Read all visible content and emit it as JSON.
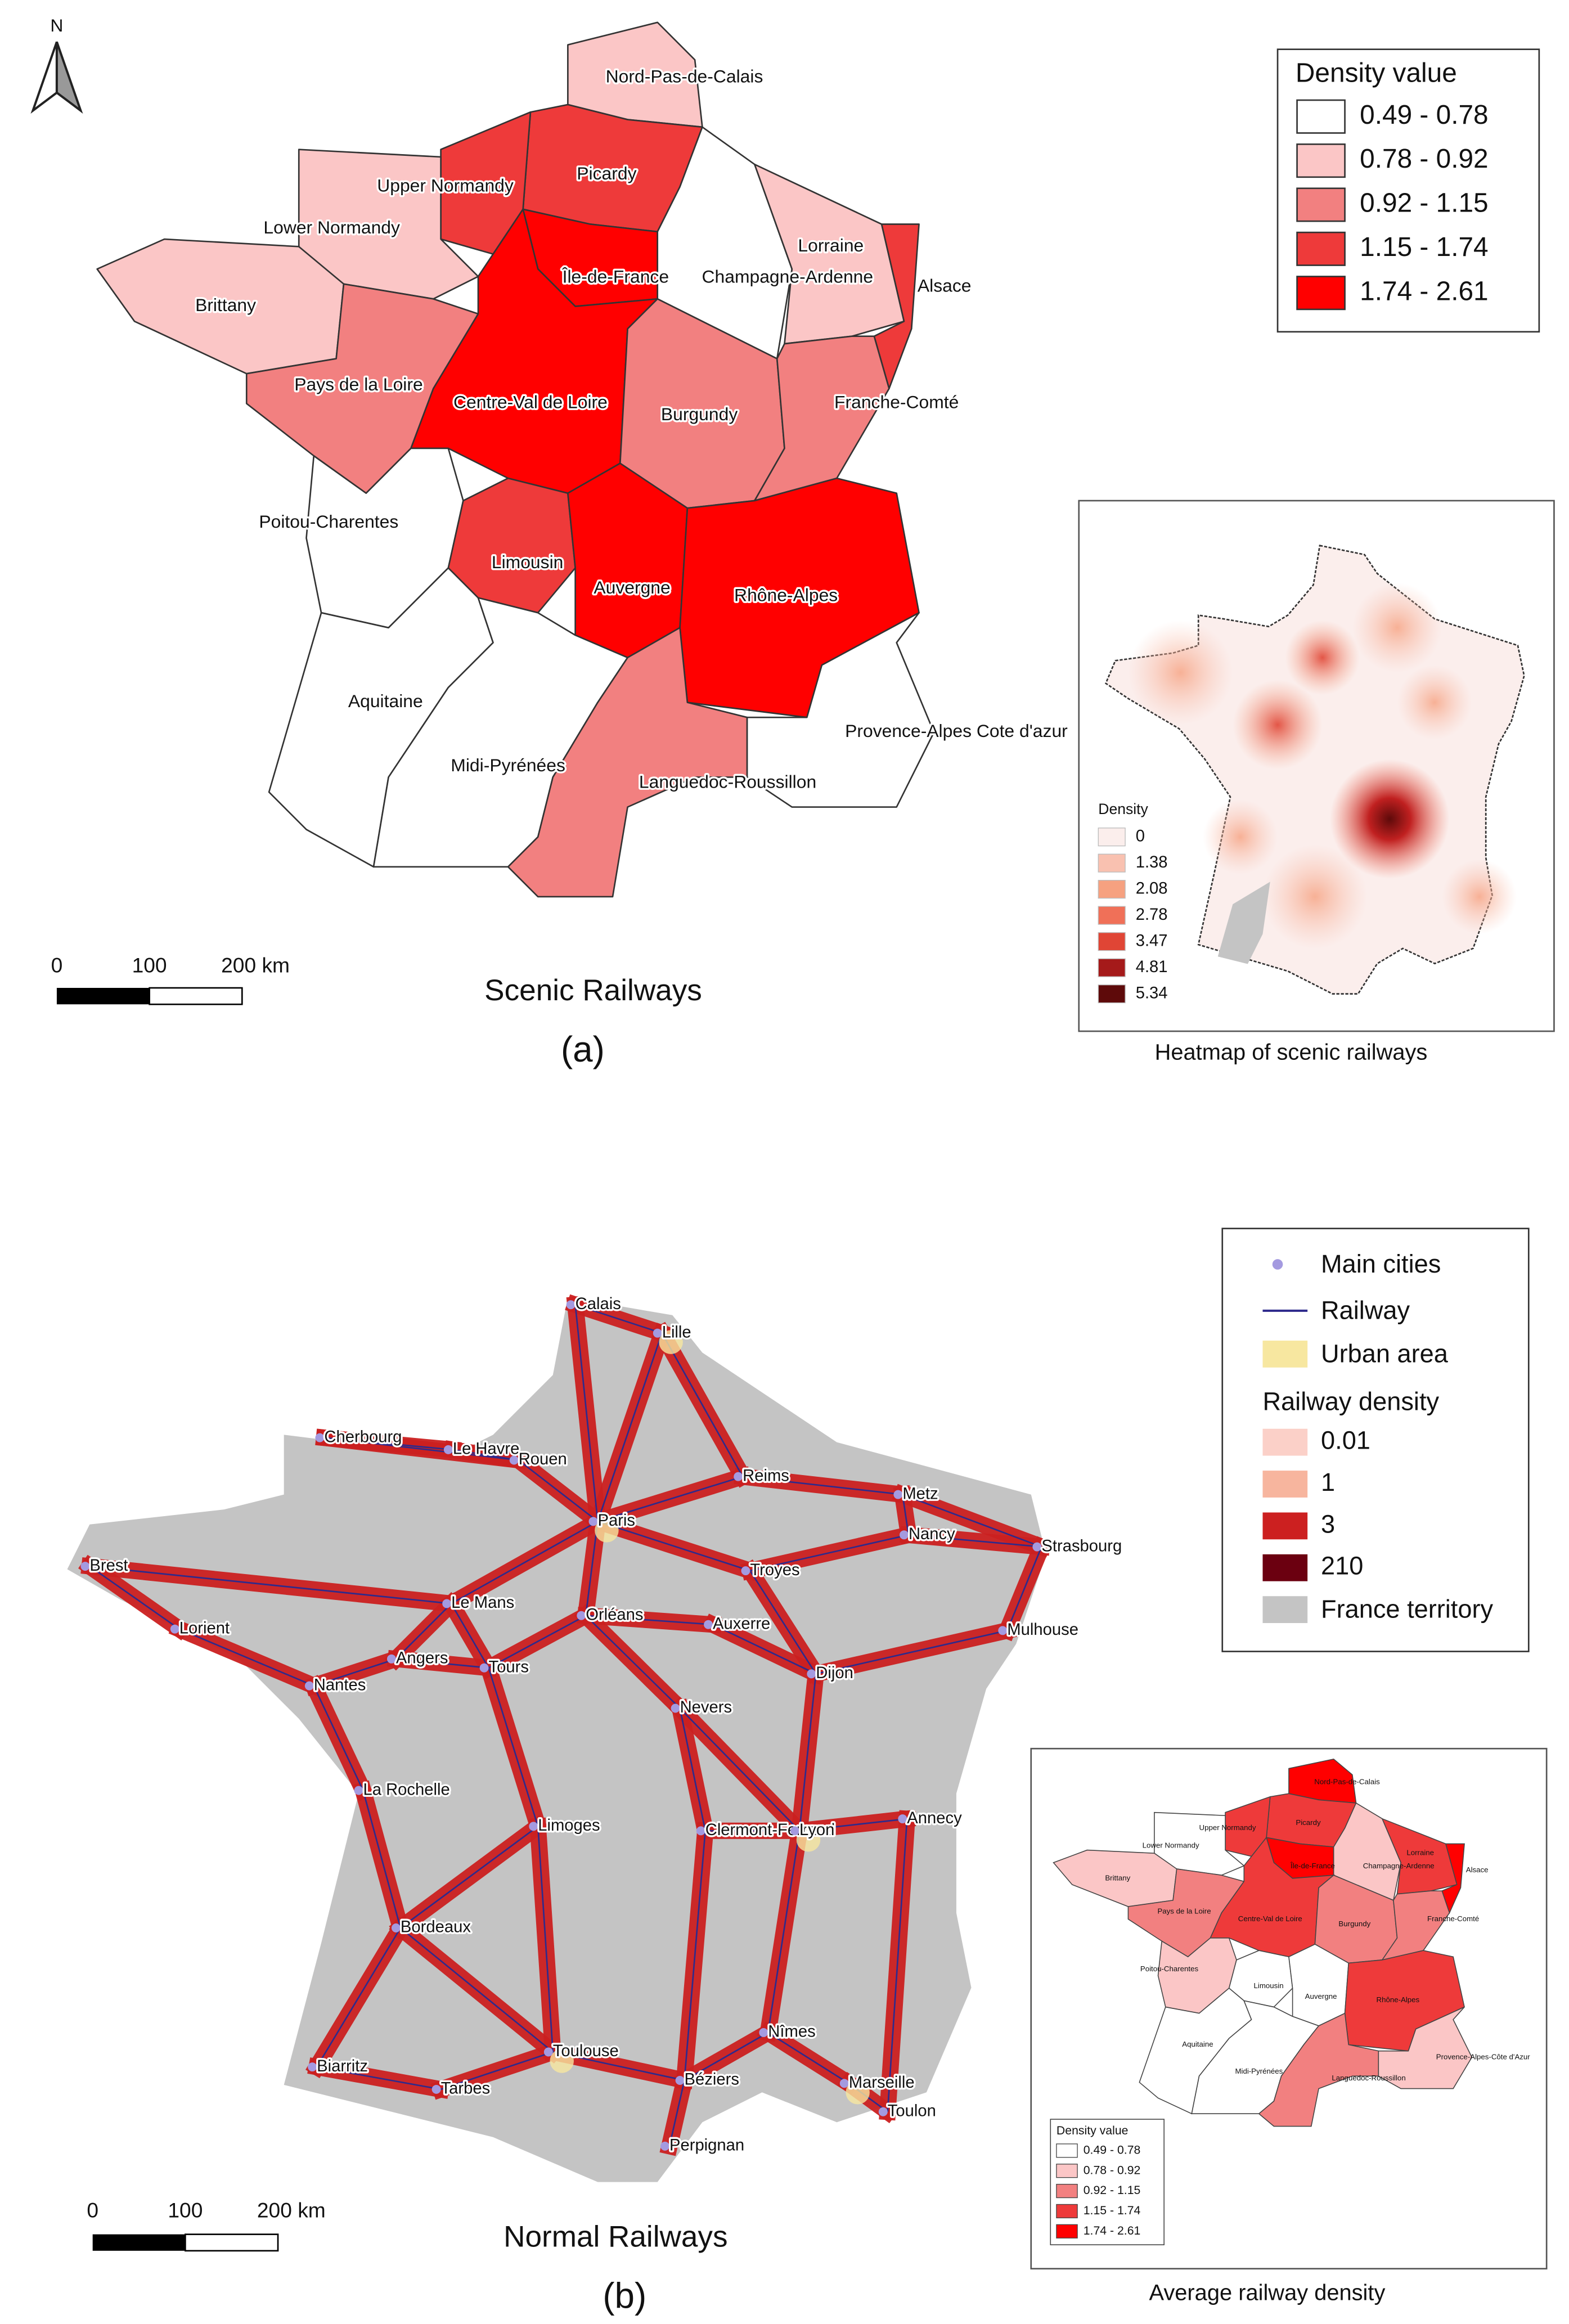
{
  "panel_a": {
    "north_label": "N",
    "title": "Scenic Railways",
    "caption": "(a)",
    "scale_bar": [
      "0",
      "100",
      "200 km"
    ],
    "regions": [
      {
        "name": "Nord-Pas-de-Calais",
        "color": "#fbc6c6"
      },
      {
        "name": "Picardy",
        "color": "#ee3a3a"
      },
      {
        "name": "Upper Normandy",
        "color": "#ee3a3a"
      },
      {
        "name": "Lower Normandy",
        "color": "#fbc6c6"
      },
      {
        "name": "Brittany",
        "color": "#fbc6c6"
      },
      {
        "name": "Île-de-France",
        "color": "#ff0000"
      },
      {
        "name": "Champagne-Ardenne",
        "color": "#ffffff"
      },
      {
        "name": "Lorraine",
        "color": "#fbc6c6"
      },
      {
        "name": "Alsace",
        "color": "#ee3a3a"
      },
      {
        "name": "Pays de la Loire",
        "color": "#f28080"
      },
      {
        "name": "Centre-Val de Loire",
        "color": "#ff0000"
      },
      {
        "name": "Burgundy",
        "color": "#f28080"
      },
      {
        "name": "Franche-Comté",
        "color": "#f28080"
      },
      {
        "name": "Poitou-Charentes",
        "color": "#ffffff"
      },
      {
        "name": "Limousin",
        "color": "#ee3a3a"
      },
      {
        "name": "Auvergne",
        "color": "#ff0000"
      },
      {
        "name": "Rhône-Alpes",
        "color": "#ff0000"
      },
      {
        "name": "Aquitaine",
        "color": "#ffffff"
      },
      {
        "name": "Midi-Pyrénées",
        "color": "#ffffff"
      },
      {
        "name": "Languedoc-Roussillon",
        "color": "#f28080"
      },
      {
        "name": "Provence-Alpes Cote d'azur",
        "color": "#ffffff"
      }
    ],
    "legend": {
      "title": "Density value",
      "items": [
        {
          "label": "0.49 - 0.78",
          "color": "#ffffff"
        },
        {
          "label": "0.78 - 0.92",
          "color": "#fbc6c6"
        },
        {
          "label": "0.92 - 1.15",
          "color": "#f28080"
        },
        {
          "label": "1.15 - 1.74",
          "color": "#ee3a3a"
        },
        {
          "label": "1.74 - 2.61",
          "color": "#ff0000"
        }
      ]
    },
    "heatmap": {
      "caption": "Heatmap of scenic railways",
      "legend_title": "Density",
      "items": [
        {
          "label": "0",
          "color": "#fbeeec"
        },
        {
          "label": "1.38",
          "color": "#f9c1b0"
        },
        {
          "label": "2.08",
          "color": "#f6a180"
        },
        {
          "label": "2.78",
          "color": "#f07058"
        },
        {
          "label": "3.47",
          "color": "#e04535"
        },
        {
          "label": "4.81",
          "color": "#a51a1a"
        },
        {
          "label": "5.34",
          "color": "#5e0a0a"
        }
      ]
    }
  },
  "panel_b": {
    "title": "Normal Railways",
    "caption": "(b)",
    "scale_bar": [
      "0",
      "100",
      "200 km"
    ],
    "cities": [
      "Calais",
      "Lille",
      "Cherbourg",
      "Le Havre",
      "Rouen",
      "Reims",
      "Metz",
      "Paris",
      "Nancy",
      "Strasbourg",
      "Brest",
      "Troyes",
      "Lorient",
      "Le Mans",
      "Orléans",
      "Auxerre",
      "Mulhouse",
      "Angers",
      "Tours",
      "Nantes",
      "Dijon",
      "Nevers",
      "La Rochelle",
      "Annecy",
      "Limoges",
      "Clermont-Ferrand",
      "Lyon",
      "Bordeaux",
      "Nîmes",
      "Biarritz",
      "Toulouse",
      "Marseille",
      "Béziers",
      "Tarbes",
      "Toulon",
      "Perpignan"
    ],
    "legend": {
      "cities_label": "Main cities",
      "cities_color": "#a49ae0",
      "railway_label": "Railway",
      "railway_color": "#2e2a8c",
      "urban_label": "Urban area",
      "urban_color": "#f7e7a0",
      "density_title": "Railway density",
      "density_items": [
        {
          "label": "0.01",
          "color": "#fbd0c8"
        },
        {
          "label": "1",
          "color": "#f7b59e"
        },
        {
          "label": "3",
          "color": "#cc2020"
        },
        {
          "label": "210",
          "color": "#6b0010"
        }
      ],
      "territory_label": "France territory",
      "territory_color": "#c4c4c4"
    },
    "inset": {
      "caption": "Average railway density",
      "regions": [
        {
          "name": "Nord-Pas-de-Calais",
          "color": "#ff0000"
        },
        {
          "name": "Picardy",
          "color": "#ee3a3a"
        },
        {
          "name": "Upper Normandy",
          "color": "#ee3a3a"
        },
        {
          "name": "Lower Normandy",
          "color": "#ffffff"
        },
        {
          "name": "Brittany",
          "color": "#fbc6c6"
        },
        {
          "name": "Île-de-France",
          "color": "#ff0000"
        },
        {
          "name": "Champagne-Ardenne",
          "color": "#fbc6c6"
        },
        {
          "name": "Lorraine",
          "color": "#ee3a3a"
        },
        {
          "name": "Alsace",
          "color": "#ff0000"
        },
        {
          "name": "Pays de la Loire",
          "color": "#f28080"
        },
        {
          "name": "Centre-Val de Loire",
          "color": "#ee3a3a"
        },
        {
          "name": "Burgundy",
          "color": "#f28080"
        },
        {
          "name": "Franche-Comté",
          "color": "#f28080"
        },
        {
          "name": "Poitou-Charentes",
          "color": "#fbc6c6"
        },
        {
          "name": "Limousin",
          "color": "#ffffff"
        },
        {
          "name": "Auvergne",
          "color": "#ffffff"
        },
        {
          "name": "Rhône-Alpes",
          "color": "#ee3a3a"
        },
        {
          "name": "Aquitaine",
          "color": "#ffffff"
        },
        {
          "name": "Midi-Pyrénées",
          "color": "#ffffff"
        },
        {
          "name": "Languedoc-Roussillon",
          "color": "#f28080"
        },
        {
          "name": "Provence-Alpes-Côte d'Azur",
          "color": "#fbc6c6"
        }
      ],
      "legend": {
        "title": "Density value",
        "items": [
          {
            "label": "0.49 - 0.78",
            "color": "#ffffff"
          },
          {
            "label": "0.78 - 0.92",
            "color": "#fbc6c6"
          },
          {
            "label": "0.92 - 1.15",
            "color": "#f28080"
          },
          {
            "label": "1.15 - 1.74",
            "color": "#ee3a3a"
          },
          {
            "label": "1.74 - 2.61",
            "color": "#ff0000"
          }
        ]
      }
    }
  }
}
